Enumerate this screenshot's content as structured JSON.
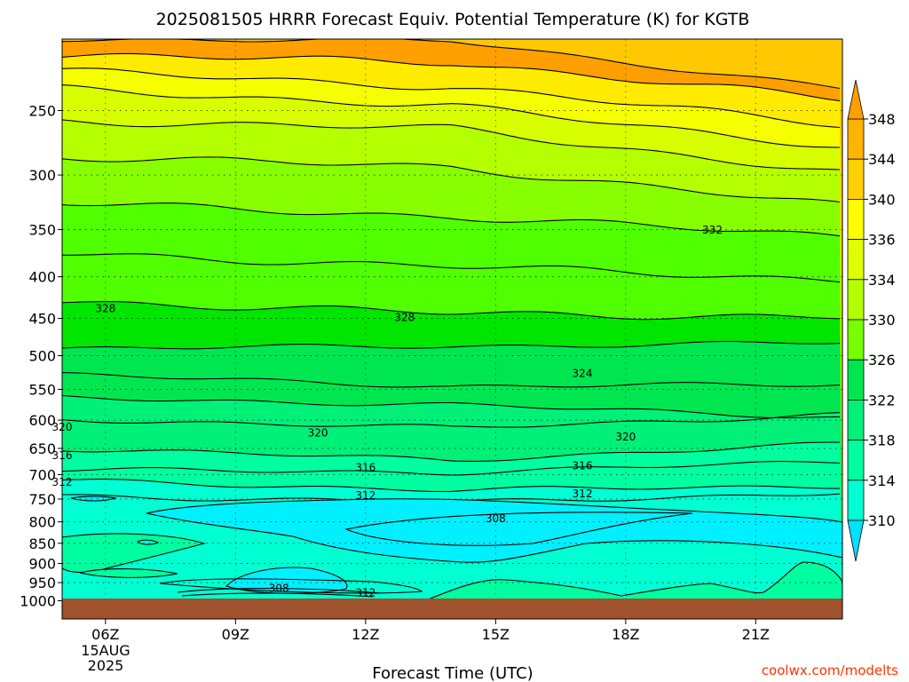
{
  "title": "2025081505 HRRR Forecast Equiv. Potential Temperature (K) for KGTB",
  "xlabel": "Forecast Time (UTC)",
  "credit": "coolwx.com/modelts",
  "date_label": [
    "15AUG",
    "2025"
  ],
  "colors": {
    "terrain": "#a0522d",
    "levels": [
      "#00f0ff",
      "#00ffd2",
      "#00ffa0",
      "#00f078",
      "#00e650",
      "#00e600",
      "#50ff00",
      "#88ff00",
      "#b4ff00",
      "#d8ff00",
      "#f5ff00",
      "#ffeb00",
      "#ffc800",
      "#ffa000"
    ]
  },
  "chart_data": {
    "type": "contour",
    "variable": "Equivalent potential temperature (K)",
    "x_ticks": [
      "06Z",
      "09Z",
      "12Z",
      "15Z",
      "18Z",
      "21Z"
    ],
    "x_range_hours_utc": [
      5,
      23
    ],
    "y_ticks": [
      250,
      300,
      350,
      400,
      450,
      500,
      550,
      600,
      650,
      700,
      750,
      800,
      850,
      900,
      950,
      1000
    ],
    "y_range": [
      200,
      1000
    ],
    "y_log": true,
    "colorbar_ticks": [
      310,
      314,
      318,
      322,
      326,
      330,
      334,
      336,
      340,
      344,
      348
    ],
    "contour_labels": [
      {
        "value": "332",
        "hour": 20.0,
        "p": 350
      },
      {
        "value": "328",
        "hour": 6.0,
        "p": 437
      },
      {
        "value": "328",
        "hour": 12.9,
        "p": 448
      },
      {
        "value": "324",
        "hour": 17.0,
        "p": 525
      },
      {
        "value": "320",
        "hour": 5.0,
        "p": 611
      },
      {
        "value": "320",
        "hour": 10.9,
        "p": 621
      },
      {
        "value": "320",
        "hour": 18.0,
        "p": 628
      },
      {
        "value": "316",
        "hour": 5.0,
        "p": 662
      },
      {
        "value": "316",
        "hour": 12.0,
        "p": 685
      },
      {
        "value": "316",
        "hour": 17.0,
        "p": 682
      },
      {
        "value": "312",
        "hour": 5.0,
        "p": 714
      },
      {
        "value": "312",
        "hour": 12.0,
        "p": 742
      },
      {
        "value": "312",
        "hour": 17.0,
        "p": 738
      },
      {
        "value": "308",
        "hour": 15.0,
        "p": 792
      },
      {
        "value": "308",
        "hour": 10.0,
        "p": 964
      },
      {
        "value": "312",
        "hour": 12.0,
        "p": 977
      }
    ]
  }
}
